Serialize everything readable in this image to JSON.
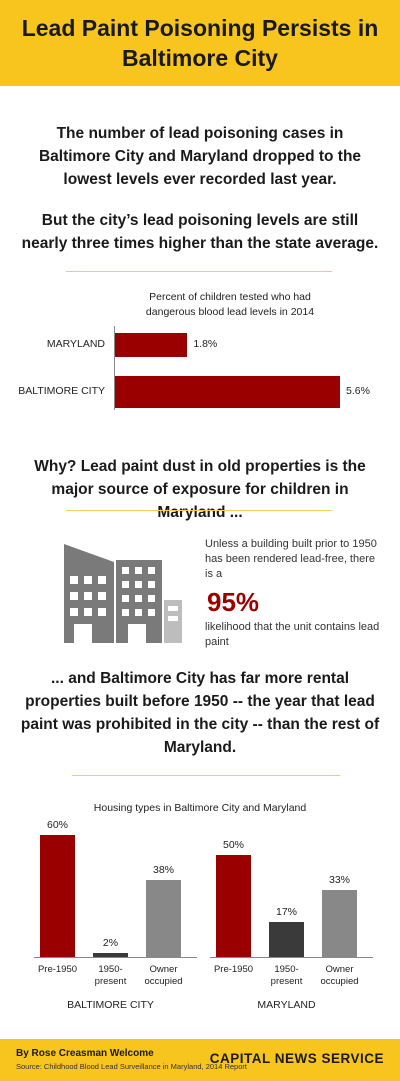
{
  "header": {
    "title": "Lead Paint Poisoning Persists in Baltimore City"
  },
  "intro": {
    "p1": "The number of lead poisoning cases in Baltimore City and Maryland dropped to the lowest levels ever recorded last year.",
    "p2": "But the city’s lead poisoning levels are still nearly three times higher than the state average."
  },
  "why": {
    "text": "Why? Lead paint dust in old properties is the major source of exposure for children in Maryland ...",
    "callout_pre": "Unless a building built prior to 1950 has been rendered lead-free, there is a",
    "callout_pct": "95%",
    "callout_post": "likelihood that the unit contains lead paint"
  },
  "rental": {
    "text": "... and Baltimore City has far more rental properties built before 1950 -- the year that lead paint was prohibited in the city -- than the rest of Maryland."
  },
  "footer": {
    "byline": "By Rose Creasman Welcome",
    "source": "Source: Childhood Blood Lead Surveillance in Maryland, 2014 Report",
    "brand": "CAPITAL NEWS SERVICE"
  },
  "colors": {
    "accent": "#f7c51e",
    "red": "#9b0000",
    "dark": "#3a3a3a",
    "gray": "#888888"
  },
  "chart_data": [
    {
      "type": "bar",
      "orientation": "horizontal",
      "title": "Percent of children tested who had dangerous blood lead levels in 2014",
      "categories": [
        "MARYLAND",
        "BALTIMORE CITY"
      ],
      "values": [
        1.8,
        5.6
      ],
      "value_labels": [
        "1.8%",
        "5.6%"
      ],
      "xlim": [
        0,
        5.6
      ]
    },
    {
      "type": "bar",
      "title": "Housing types in Baltimore City and Maryland",
      "ylim": [
        0,
        60
      ],
      "groups": [
        {
          "name": "BALTIMORE CITY",
          "categories": [
            "Pre-1950",
            "1950-present",
            "Owner occupied"
          ],
          "values": [
            60,
            2,
            38
          ],
          "value_labels": [
            "60%",
            "2%",
            "38%"
          ]
        },
        {
          "name": "MARYLAND",
          "categories": [
            "Pre-1950",
            "1950-present",
            "Owner occupied"
          ],
          "values": [
            50,
            17,
            33
          ],
          "value_labels": [
            "50%",
            "17%",
            "33%"
          ]
        }
      ]
    }
  ]
}
